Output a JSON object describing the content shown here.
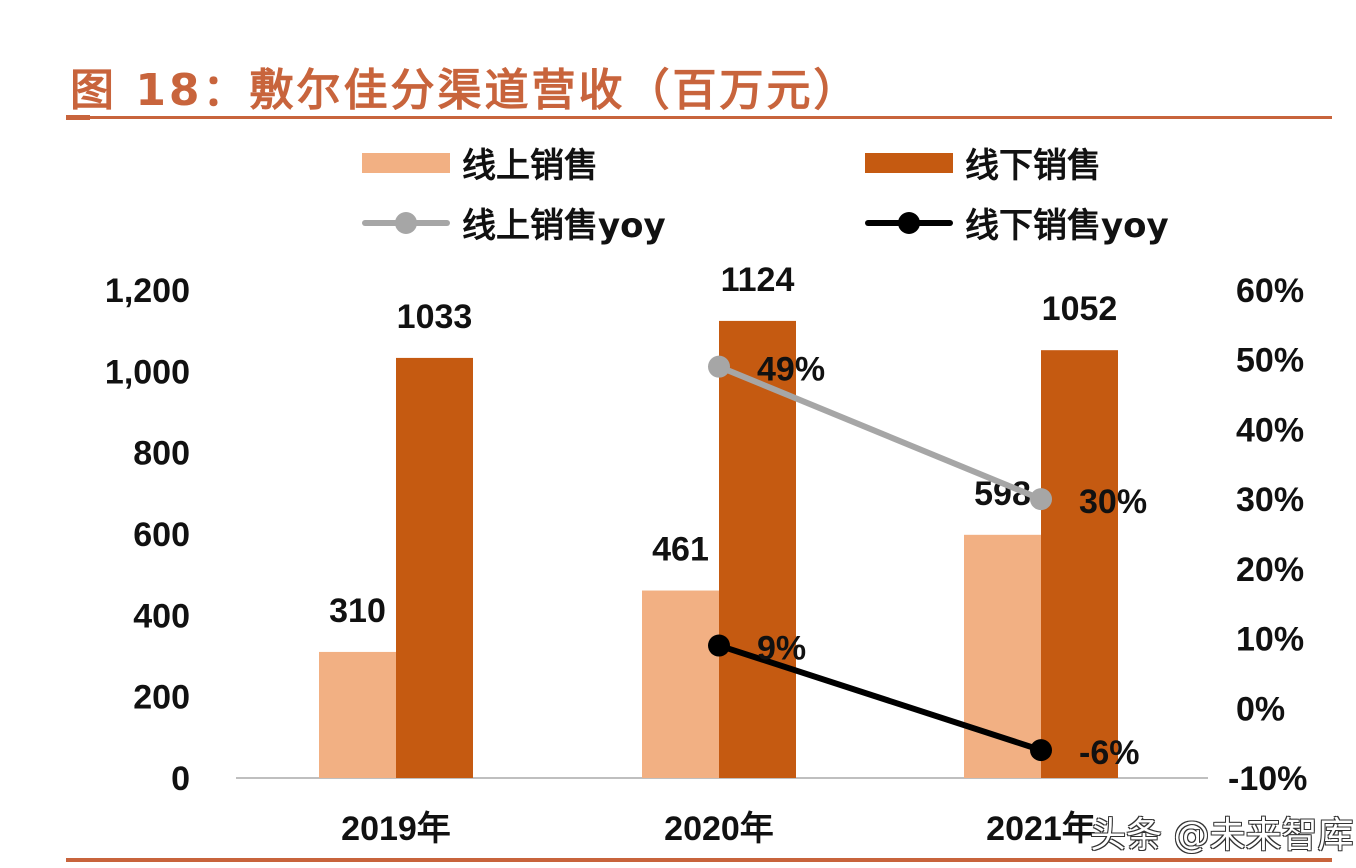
{
  "chart_data": {
    "type": "bar",
    "title": "图 18：敷尔佳分渠道营收（百万元）",
    "xlabel": "",
    "ylabel": "",
    "categories": [
      "2019年",
      "2020年",
      "2021年"
    ],
    "series": [
      {
        "name": "线上销售",
        "kind": "bar",
        "axis": "left",
        "color": "#f2b083",
        "values": [
          310,
          461,
          598
        ],
        "labels": [
          "310",
          "461",
          "598"
        ]
      },
      {
        "name": "线下销售",
        "kind": "bar",
        "axis": "left",
        "color": "#c55a11",
        "values": [
          1033,
          1124,
          1052
        ],
        "labels": [
          "1033",
          "1124",
          "1052"
        ]
      },
      {
        "name": "线上销售yoy",
        "kind": "line",
        "axis": "right",
        "color": "#a6a6a6",
        "values": [
          null,
          49,
          30
        ],
        "labels": [
          "",
          "49%",
          "30%"
        ]
      },
      {
        "name": "线下销售yoy",
        "kind": "line",
        "axis": "right",
        "color": "#000000",
        "values": [
          null,
          9,
          -6
        ],
        "labels": [
          "",
          "9%",
          "-6%"
        ]
      }
    ],
    "ylim": [
      0,
      1200
    ],
    "y_ticks": [
      0,
      200,
      400,
      600,
      800,
      1000,
      1200
    ],
    "y_tick_labels": [
      "0",
      "200",
      "400",
      "600",
      "800",
      "1,000",
      "1,200"
    ],
    "y2lim": [
      -10,
      60
    ],
    "y2_ticks": [
      -10,
      0,
      10,
      20,
      30,
      40,
      50,
      60
    ],
    "y2_tick_labels": [
      "-10%",
      "0%",
      "10%",
      "20%",
      "30%",
      "40%",
      "50%",
      "60%"
    ],
    "grid": false,
    "legend_position": "top"
  },
  "legend": [
    {
      "label": "线上销售",
      "color": "#f2b083",
      "kind": "bar"
    },
    {
      "label": "线下销售",
      "color": "#c55a11",
      "kind": "bar"
    },
    {
      "label": "线上销售yoy",
      "color": "#a6a6a6",
      "kind": "line"
    },
    {
      "label": "线下销售yoy",
      "color": "#000000",
      "kind": "line"
    }
  ],
  "watermark": "头条 @未来智库",
  "colors": {
    "accent": "#c8643c"
  }
}
